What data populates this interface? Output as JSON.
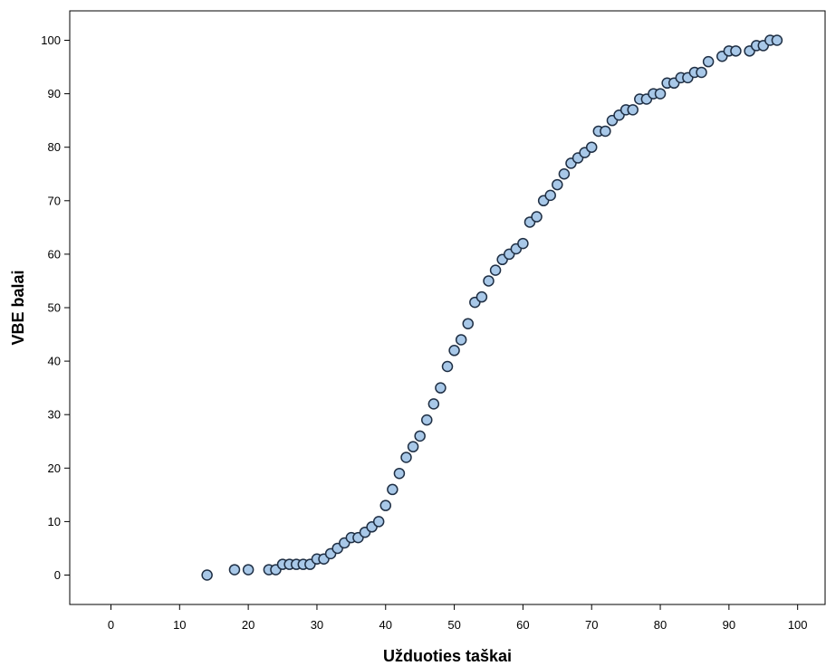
{
  "chart_data": {
    "type": "scatter",
    "title": "",
    "xlabel": "Užduoties taškai",
    "ylabel": "VBE balai",
    "xlim": [
      -6,
      104
    ],
    "ylim": [
      -5.5,
      105.5
    ],
    "xticks": [
      0,
      10,
      20,
      30,
      40,
      50,
      60,
      70,
      80,
      90,
      100
    ],
    "yticks": [
      0,
      10,
      20,
      30,
      40,
      50,
      60,
      70,
      80,
      90,
      100
    ],
    "grid": false,
    "colors": {
      "marker_fill": "#a8c8e8",
      "marker_stroke": "#1f2f44",
      "axis": "#000000"
    },
    "points": [
      [
        14,
        0
      ],
      [
        18,
        1
      ],
      [
        20,
        1
      ],
      [
        23,
        1
      ],
      [
        24,
        1
      ],
      [
        25,
        2
      ],
      [
        26,
        2
      ],
      [
        27,
        2
      ],
      [
        28,
        2
      ],
      [
        29,
        2
      ],
      [
        30,
        3
      ],
      [
        31,
        3
      ],
      [
        32,
        4
      ],
      [
        33,
        5
      ],
      [
        34,
        6
      ],
      [
        35,
        7
      ],
      [
        36,
        7
      ],
      [
        37,
        8
      ],
      [
        38,
        9
      ],
      [
        39,
        10
      ],
      [
        40,
        13
      ],
      [
        41,
        16
      ],
      [
        42,
        19
      ],
      [
        43,
        22
      ],
      [
        44,
        24
      ],
      [
        45,
        26
      ],
      [
        46,
        29
      ],
      [
        47,
        32
      ],
      [
        48,
        35
      ],
      [
        49,
        39
      ],
      [
        50,
        42
      ],
      [
        51,
        44
      ],
      [
        52,
        47
      ],
      [
        53,
        51
      ],
      [
        54,
        52
      ],
      [
        55,
        55
      ],
      [
        56,
        57
      ],
      [
        57,
        59
      ],
      [
        58,
        60
      ],
      [
        59,
        61
      ],
      [
        60,
        62
      ],
      [
        61,
        66
      ],
      [
        62,
        67
      ],
      [
        63,
        70
      ],
      [
        64,
        71
      ],
      [
        65,
        73
      ],
      [
        66,
        75
      ],
      [
        67,
        77
      ],
      [
        68,
        78
      ],
      [
        69,
        79
      ],
      [
        70,
        80
      ],
      [
        71,
        83
      ],
      [
        72,
        83
      ],
      [
        73,
        85
      ],
      [
        74,
        86
      ],
      [
        75,
        87
      ],
      [
        76,
        87
      ],
      [
        77,
        89
      ],
      [
        78,
        89
      ],
      [
        79,
        90
      ],
      [
        80,
        90
      ],
      [
        81,
        92
      ],
      [
        82,
        92
      ],
      [
        83,
        93
      ],
      [
        84,
        93
      ],
      [
        85,
        94
      ],
      [
        86,
        94
      ],
      [
        87,
        96
      ],
      [
        89,
        97
      ],
      [
        90,
        98
      ],
      [
        91,
        98
      ],
      [
        93,
        98
      ],
      [
        94,
        99
      ],
      [
        95,
        99
      ],
      [
        96,
        100
      ],
      [
        97,
        100
      ]
    ]
  }
}
